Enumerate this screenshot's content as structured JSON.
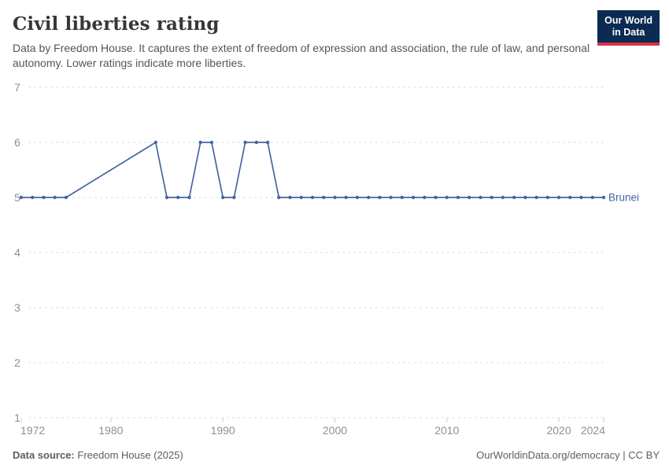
{
  "header": {
    "title": "Civil liberties rating",
    "subtitle": "Data by Freedom House. It captures the extent of freedom of expression and association, the rule of law, and personal autonomy. Lower ratings indicate more liberties.",
    "logo": {
      "line1": "Our World",
      "line2": "in Data",
      "bg_color": "#0c2b52",
      "accent_color": "#d2354a"
    }
  },
  "chart_data": {
    "type": "line",
    "title": "Civil liberties rating",
    "xlabel": "",
    "ylabel": "",
    "xlim": [
      1972,
      2024
    ],
    "ylim": [
      1,
      7
    ],
    "x_ticks": [
      1972,
      1980,
      1990,
      2000,
      2010,
      2020,
      2024
    ],
    "y_ticks": [
      1,
      2,
      3,
      4,
      5,
      6,
      7
    ],
    "grid": "horizontal-dashed",
    "grid_color": "#dcdcdc",
    "tick_label_color": "#8f8f8f",
    "legend_position": "end-of-line-label",
    "series": [
      {
        "name": "Brunei",
        "color": "#4565a0",
        "points": [
          [
            1972,
            5
          ],
          [
            1973,
            5
          ],
          [
            1974,
            5
          ],
          [
            1975,
            5
          ],
          [
            1976,
            5
          ],
          [
            1984,
            6
          ],
          [
            1985,
            5
          ],
          [
            1986,
            5
          ],
          [
            1987,
            5
          ],
          [
            1988,
            6
          ],
          [
            1989,
            6
          ],
          [
            1990,
            5
          ],
          [
            1991,
            5
          ],
          [
            1992,
            6
          ],
          [
            1993,
            6
          ],
          [
            1994,
            6
          ],
          [
            1995,
            5
          ],
          [
            1996,
            5
          ],
          [
            1997,
            5
          ],
          [
            1998,
            5
          ],
          [
            1999,
            5
          ],
          [
            2000,
            5
          ],
          [
            2001,
            5
          ],
          [
            2002,
            5
          ],
          [
            2003,
            5
          ],
          [
            2004,
            5
          ],
          [
            2005,
            5
          ],
          [
            2006,
            5
          ],
          [
            2007,
            5
          ],
          [
            2008,
            5
          ],
          [
            2009,
            5
          ],
          [
            2010,
            5
          ],
          [
            2011,
            5
          ],
          [
            2012,
            5
          ],
          [
            2013,
            5
          ],
          [
            2014,
            5
          ],
          [
            2015,
            5
          ],
          [
            2016,
            5
          ],
          [
            2017,
            5
          ],
          [
            2018,
            5
          ],
          [
            2019,
            5
          ],
          [
            2020,
            5
          ],
          [
            2021,
            5
          ],
          [
            2022,
            5
          ],
          [
            2023,
            5
          ],
          [
            2024,
            5
          ]
        ]
      }
    ]
  },
  "footer": {
    "source_label": "Data source:",
    "source_value": "Freedom House (2025)",
    "credit": "OurWorldinData.org/democracy | CC BY"
  }
}
